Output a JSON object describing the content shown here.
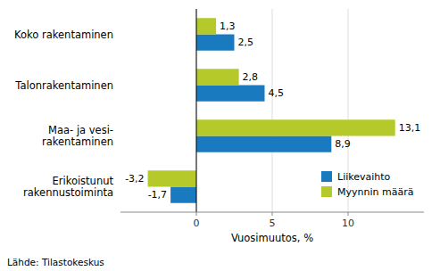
{
  "chart_data": {
    "type": "bar",
    "orientation": "horizontal",
    "categories": [
      "Koko rakentaminen",
      "Talonrakentaminen",
      "Maa- ja vesi-\nrakentaminen",
      "Erikoistunut\nrakennustoiminta"
    ],
    "series": [
      {
        "name": "Liikevaihto",
        "color": "#1a7abf",
        "values": [
          2.5,
          4.5,
          8.9,
          -1.7
        ],
        "value_labels": [
          "2,5",
          "4,5",
          "8,9",
          "-1,7"
        ]
      },
      {
        "name": "Myynnin määrä",
        "color": "#b5c92a",
        "values": [
          1.3,
          2.8,
          13.1,
          -3.2
        ],
        "value_labels": [
          "1,3",
          "2,8",
          "13,1",
          "-3,2"
        ]
      }
    ],
    "x_label": "Vuosimuutos, %",
    "xlim": [
      -5,
      15
    ],
    "xticks": [
      0,
      5,
      10
    ],
    "grid": true,
    "legend": "lower right",
    "data_labels": true,
    "annotations": [
      "Lähde: Tilastokeskus"
    ]
  }
}
